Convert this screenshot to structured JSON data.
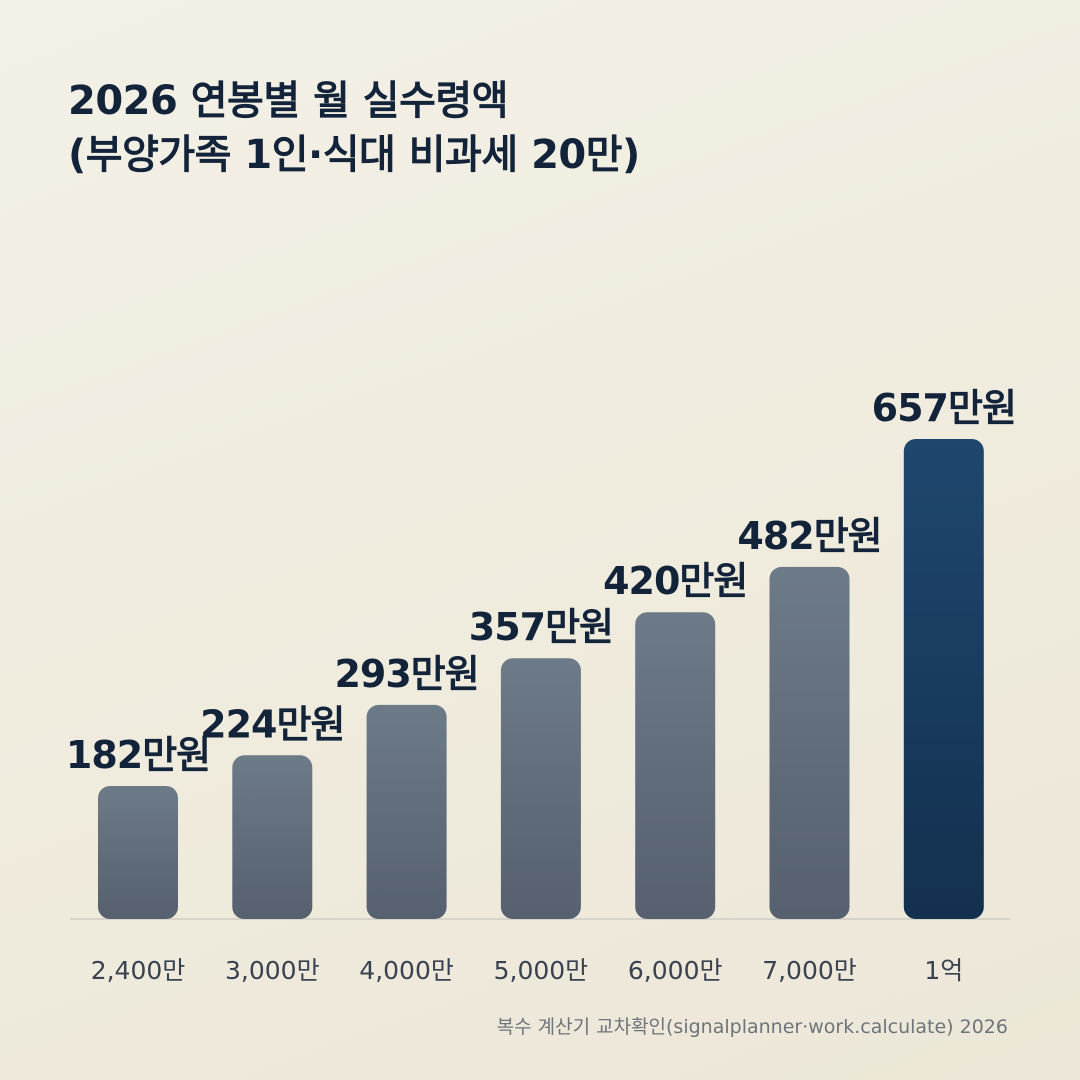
{
  "title": {
    "line1": "2026 연봉별 월 실수령액",
    "line2": "(부양가족 1인·식대 비과세 20만)"
  },
  "footer": {
    "source": "복수 계산기 교차확인(signalplanner·work.calculate) 2026"
  },
  "colors": {
    "bar_gray_top": "#6d7a88",
    "bar_gray_bottom": "#56606e",
    "bar_highlight_top": "#1f476e",
    "bar_highlight_bottom": "#13304f",
    "label_text": "#13243a",
    "category_text": "#3a4150",
    "baseline": "#cfcdc4"
  },
  "chart_data": {
    "type": "bar",
    "title": "2026 연봉별 월 실수령액",
    "subtitle": "(부양가족 1인·식대 비과세 20만)",
    "categories": [
      "2,400만",
      "3,000만",
      "4,000만",
      "5,000만",
      "6,000만",
      "7,000만",
      "1억"
    ],
    "values": [
      182,
      224,
      293,
      357,
      420,
      482,
      657
    ],
    "data_labels": [
      "182만원",
      "224만원",
      "293만원",
      "357만원",
      "420만원",
      "482만원",
      "657만원"
    ],
    "unit": "만원",
    "highlight_index": 6,
    "xlabel": "",
    "ylabel": "",
    "ylim": [
      0,
      657
    ],
    "grid": false,
    "legend": "none"
  }
}
